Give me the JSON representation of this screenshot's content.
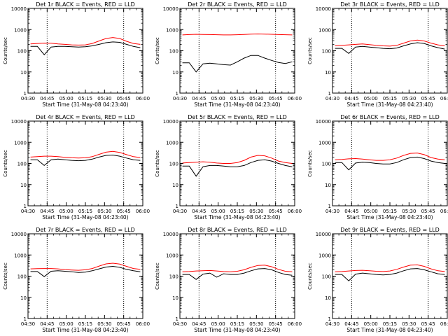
{
  "chart_data": [
    {
      "type": "line",
      "title": "Det 1r BLACK = Events, RED = LLD",
      "xlabel": "Start Time (31-May-08 04:23:40)",
      "ylabel": "Counts/sec",
      "yscale": "log",
      "ylim": [
        1,
        10000
      ],
      "x_ticks": [
        "04:30",
        "04:45",
        "05:00",
        "05:15",
        "05:30",
        "05:45",
        "06:00"
      ],
      "y_ticks": [
        "1",
        "10",
        "100",
        "1000",
        "10000"
      ],
      "markers": [
        "04:45",
        "05:45"
      ],
      "series": [
        {
          "color": "#000000",
          "values": [
            160,
            160,
            65,
            150,
            160,
            160,
            155,
            150,
            155,
            170,
            200,
            240,
            260,
            250,
            200,
            160,
            140
          ]
        },
        {
          "color": "#ff0000",
          "values": [
            210,
            220,
            230,
            225,
            210,
            200,
            190,
            185,
            190,
            220,
            290,
            380,
            420,
            380,
            280,
            220,
            200
          ]
        }
      ]
    },
    {
      "type": "line",
      "title": "Det 2r BLACK = Events, RED = LLD",
      "xlabel": "Start Time (31-May-08 04:23:40)",
      "ylabel": "Counts/sec",
      "yscale": "log",
      "ylim": [
        1,
        10000
      ],
      "x_ticks": [
        "04:30",
        "04:45",
        "05:00",
        "05:15",
        "05:30",
        "05:45",
        "06:00"
      ],
      "y_ticks": [
        "1",
        "10",
        "100",
        "1000",
        "10000"
      ],
      "markers": [
        "04:45",
        "05:45"
      ],
      "series": [
        {
          "color": "#000000",
          "values": [
            27,
            27,
            10,
            24,
            26,
            24,
            22,
            21,
            30,
            45,
            60,
            60,
            45,
            35,
            28,
            25,
            30
          ]
        },
        {
          "color": "#ff0000",
          "values": [
            560,
            580,
            600,
            590,
            580,
            570,
            560,
            560,
            570,
            590,
            610,
            620,
            610,
            600,
            580,
            570,
            560
          ]
        }
      ]
    },
    {
      "type": "line",
      "title": "Det 3r BLACK = Events, RED = LLD",
      "xlabel": "Start Time (31-May-08 04:23:40)",
      "ylabel": "Counts/sec",
      "yscale": "log",
      "ylim": [
        1,
        10000
      ],
      "x_ticks": [
        "04:30",
        "04:45",
        "05:00",
        "05:15",
        "05:30",
        "05:45",
        "06:00"
      ],
      "y_ticks": [
        "1",
        "10",
        "100",
        "1000",
        "10000"
      ],
      "markers": [
        "04:45",
        "05:45"
      ],
      "series": [
        {
          "color": "#000000",
          "values": [
            130,
            130,
            75,
            150,
            160,
            150,
            140,
            130,
            125,
            135,
            170,
            210,
            240,
            220,
            170,
            140,
            120
          ]
        },
        {
          "color": "#ff0000",
          "values": [
            170,
            180,
            190,
            200,
            210,
            195,
            180,
            170,
            165,
            180,
            230,
            290,
            320,
            290,
            230,
            190,
            170
          ]
        }
      ]
    },
    {
      "type": "line",
      "title": "Det 4r BLACK = Events, RED = LLD",
      "xlabel": "Start Time (31-May-08 04:23:40)",
      "ylabel": "Counts/sec",
      "yscale": "log",
      "ylim": [
        1,
        10000
      ],
      "x_ticks": [
        "04:30",
        "04:45",
        "05:00",
        "05:15",
        "05:30",
        "05:45",
        "06:00"
      ],
      "y_ticks": [
        "1",
        "10",
        "100",
        "1000",
        "10000"
      ],
      "markers": [
        "04:45",
        "05:45"
      ],
      "series": [
        {
          "color": "#000000",
          "values": [
            150,
            150,
            80,
            150,
            160,
            150,
            140,
            135,
            140,
            160,
            200,
            240,
            250,
            220,
            180,
            150,
            140
          ]
        },
        {
          "color": "#ff0000",
          "values": [
            200,
            210,
            220,
            220,
            210,
            195,
            185,
            180,
            185,
            210,
            270,
            340,
            370,
            330,
            260,
            210,
            190
          ]
        }
      ]
    },
    {
      "type": "line",
      "title": "Det 5r BLACK = Events, RED = LLD",
      "xlabel": "Start Time (31-May-08 04:23:40)",
      "ylabel": "Counts/sec",
      "yscale": "log",
      "ylim": [
        1,
        10000
      ],
      "x_ticks": [
        "04:30",
        "04:45",
        "05:00",
        "05:15",
        "05:30",
        "05:45",
        "06:00"
      ],
      "y_ticks": [
        "1",
        "10",
        "100",
        "1000",
        "10000"
      ],
      "markers": [
        "04:45",
        "05:45"
      ],
      "series": [
        {
          "color": "#000000",
          "values": [
            75,
            75,
            25,
            70,
            80,
            80,
            75,
            70,
            70,
            80,
            110,
            140,
            150,
            130,
            100,
            80,
            70
          ]
        },
        {
          "color": "#ff0000",
          "values": [
            105,
            110,
            115,
            120,
            115,
            105,
            100,
            100,
            110,
            140,
            200,
            240,
            230,
            180,
            130,
            110,
            100
          ]
        }
      ]
    },
    {
      "type": "line",
      "title": "Det 6r BLACK = Events, RED = LLD",
      "xlabel": "Start Time (31-May-08 04:23:40)",
      "ylabel": "Counts/sec",
      "yscale": "log",
      "ylim": [
        1,
        10000
      ],
      "x_ticks": [
        "04:30",
        "04:45",
        "05:00",
        "05:15",
        "05:30",
        "05:45",
        "06:00"
      ],
      "y_ticks": [
        "1",
        "10",
        "100",
        "1000",
        "10000"
      ],
      "markers": [
        "04:45",
        "05:45"
      ],
      "series": [
        {
          "color": "#000000",
          "values": [
            110,
            110,
            50,
            105,
            115,
            110,
            100,
            95,
            95,
            110,
            150,
            190,
            200,
            170,
            130,
            110,
            100
          ]
        },
        {
          "color": "#ff0000",
          "values": [
            150,
            155,
            165,
            170,
            160,
            150,
            140,
            140,
            150,
            180,
            240,
            300,
            310,
            260,
            190,
            160,
            150
          ]
        }
      ]
    },
    {
      "type": "line",
      "title": "Det 7r BLACK = Events, RED = LLD",
      "xlabel": "Start Time (31-May-08 04:23:40)",
      "ylabel": "Counts/sec",
      "yscale": "log",
      "ylim": [
        1,
        10000
      ],
      "x_ticks": [
        "04:30",
        "04:45",
        "05:00",
        "05:15",
        "05:30",
        "05:45",
        "06:00"
      ],
      "y_ticks": [
        "1",
        "10",
        "100",
        "1000",
        "10000"
      ],
      "markers": [
        "04:45",
        "05:45"
      ],
      "series": [
        {
          "color": "#000000",
          "values": [
            165,
            165,
            95,
            170,
            180,
            170,
            160,
            150,
            155,
            180,
            220,
            270,
            290,
            260,
            210,
            180,
            160
          ]
        },
        {
          "color": "#ff0000",
          "values": [
            220,
            225,
            230,
            230,
            220,
            205,
            195,
            190,
            200,
            230,
            300,
            380,
            410,
            370,
            290,
            230,
            210
          ]
        }
      ]
    },
    {
      "type": "line",
      "title": "Det 8r BLACK = Events, RED = LLD",
      "xlabel": "Start Time (31-May-08 04:23:40)",
      "ylabel": "Counts/sec",
      "yscale": "log",
      "ylim": [
        1,
        10000
      ],
      "x_ticks": [
        "04:30",
        "04:45",
        "05:00",
        "05:15",
        "05:30",
        "05:45",
        "06:00"
      ],
      "y_ticks": [
        "1",
        "10",
        "100",
        "1000",
        "10000"
      ],
      "markers": [
        "04:45",
        "05:45"
      ],
      "series": [
        {
          "color": "#000000",
          "values": [
            120,
            120,
            70,
            125,
            140,
            90,
            130,
            120,
            120,
            140,
            180,
            220,
            230,
            200,
            150,
            120,
            110
          ]
        },
        {
          "color": "#ff0000",
          "values": [
            160,
            165,
            175,
            180,
            185,
            175,
            165,
            160,
            170,
            200,
            260,
            320,
            330,
            280,
            210,
            170,
            160
          ]
        }
      ]
    },
    {
      "type": "line",
      "title": "Det 9r BLACK = Events, RED = LLD",
      "xlabel": "Start Time (31-May-08 04:23:40)",
      "ylabel": "Counts/sec",
      "yscale": "log",
      "ylim": [
        1,
        10000
      ],
      "x_ticks": [
        "04:30",
        "04:45",
        "05:00",
        "05:15",
        "05:30",
        "05:45",
        "06:00"
      ],
      "y_ticks": [
        "1",
        "10",
        "100",
        "1000",
        "10000"
      ],
      "markers": [
        "04:45",
        "05:45"
      ],
      "series": [
        {
          "color": "#000000",
          "values": [
            120,
            120,
            60,
            125,
            140,
            130,
            120,
            115,
            120,
            140,
            180,
            220,
            230,
            200,
            160,
            130,
            120
          ]
        },
        {
          "color": "#ff0000",
          "values": [
            160,
            165,
            175,
            185,
            190,
            180,
            170,
            165,
            175,
            210,
            270,
            330,
            340,
            290,
            220,
            180,
            165
          ]
        }
      ]
    }
  ]
}
